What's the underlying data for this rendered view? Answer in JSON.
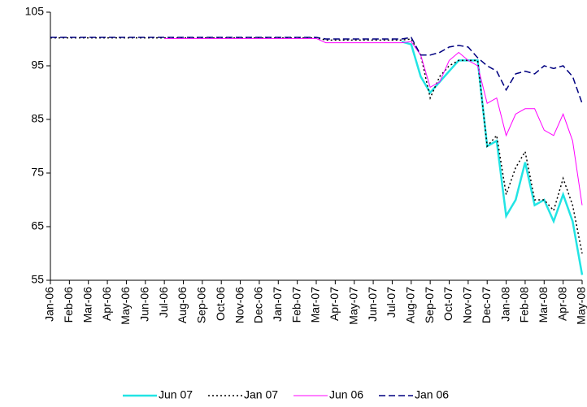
{
  "chart_data": {
    "type": "line",
    "categories": [
      "Jan-06",
      null,
      "Feb-06",
      null,
      "Mar-06",
      null,
      "Apr-06",
      null,
      "May-06",
      null,
      "Jun-06",
      null,
      "Jul-06",
      null,
      "Aug-06",
      null,
      "Sep-06",
      null,
      "Oct-06",
      null,
      "Nov-06",
      null,
      "Dec-06",
      null,
      "Jan-07",
      null,
      "Feb-07",
      null,
      "Mar-07",
      null,
      "Apr-07",
      null,
      "May-07",
      null,
      "Jun-07",
      null,
      "Jul-07",
      null,
      "Aug-07",
      null,
      "Sep-07",
      null,
      "Oct-07",
      null,
      "Nov-07",
      null,
      "Dec-07",
      null,
      "Jan-08",
      null,
      "Feb-08",
      null,
      "Mar-08",
      null,
      "Apr-08",
      null,
      "May-08"
    ],
    "ylim": [
      55,
      105
    ],
    "yticks": [
      55,
      65,
      75,
      85,
      95,
      105
    ],
    "grid": false,
    "legend": "bottom",
    "series": [
      {
        "name": "Jun 07",
        "color": "#22e4e4",
        "dash": "solid",
        "width": 2.5,
        "values": [
          null,
          null,
          null,
          null,
          null,
          null,
          null,
          null,
          null,
          null,
          null,
          null,
          null,
          null,
          null,
          null,
          null,
          null,
          null,
          null,
          null,
          null,
          null,
          null,
          null,
          null,
          null,
          null,
          null,
          null,
          null,
          null,
          null,
          null,
          null,
          null,
          null,
          99.5,
          99,
          93,
          90,
          92,
          94,
          96,
          96,
          96,
          80,
          81,
          67,
          70,
          77,
          69,
          70,
          66,
          71,
          66,
          56
        ]
      },
      {
        "name": "Jan 07",
        "color": "#000000",
        "dash": "dotted",
        "width": 1.5,
        "values": [
          100.2,
          100.2,
          100.2,
          100.2,
          100.2,
          100.2,
          100.2,
          100.2,
          100.2,
          100.2,
          100.2,
          100.2,
          100.2,
          100.2,
          100.2,
          100.2,
          100.2,
          100.2,
          100.2,
          100.2,
          100.2,
          100.2,
          100.2,
          100.2,
          100.2,
          100.2,
          100.2,
          100.2,
          100.2,
          99.8,
          99.8,
          99.8,
          99.8,
          99.8,
          99.8,
          99.8,
          99.8,
          99.8,
          100,
          97,
          89,
          93,
          95,
          96,
          96,
          96,
          80,
          82,
          71,
          76,
          79,
          70,
          70,
          68,
          74,
          69,
          60
        ]
      },
      {
        "name": "Jun 06",
        "color": "#ff00ff",
        "dash": "solid",
        "width": 1,
        "values": [
          null,
          null,
          null,
          null,
          null,
          null,
          null,
          null,
          null,
          null,
          null,
          null,
          100.1,
          100.1,
          100.1,
          100.1,
          100.1,
          100.1,
          100.1,
          100.1,
          100.1,
          100.1,
          100.1,
          100.1,
          100.1,
          100.1,
          100.1,
          100.1,
          100.1,
          99.3,
          99.3,
          99.3,
          99.3,
          99.3,
          99.3,
          99.3,
          99.3,
          99.3,
          99.5,
          97,
          91,
          92,
          96,
          97.5,
          96,
          95,
          88,
          89,
          82,
          86,
          87,
          87,
          83,
          82,
          86,
          81,
          69
        ]
      },
      {
        "name": "Jan 06",
        "color": "#000080",
        "dash": "dashed",
        "width": 1.5,
        "values": [
          100.3,
          100.3,
          100.3,
          100.3,
          100.3,
          100.3,
          100.3,
          100.3,
          100.3,
          100.3,
          100.3,
          100.3,
          100.3,
          100.3,
          100.3,
          100.3,
          100.3,
          100.3,
          100.3,
          100.3,
          100.3,
          100.3,
          100.3,
          100.3,
          100.3,
          100.3,
          100.3,
          100.3,
          100.3,
          100,
          100,
          100,
          100,
          100,
          100,
          100,
          100,
          100,
          100.3,
          97,
          97,
          97.5,
          98.5,
          98.8,
          98.5,
          96.5,
          95,
          94,
          90.5,
          93.5,
          94,
          93.5,
          95,
          94.5,
          95,
          93,
          88
        ]
      }
    ]
  }
}
